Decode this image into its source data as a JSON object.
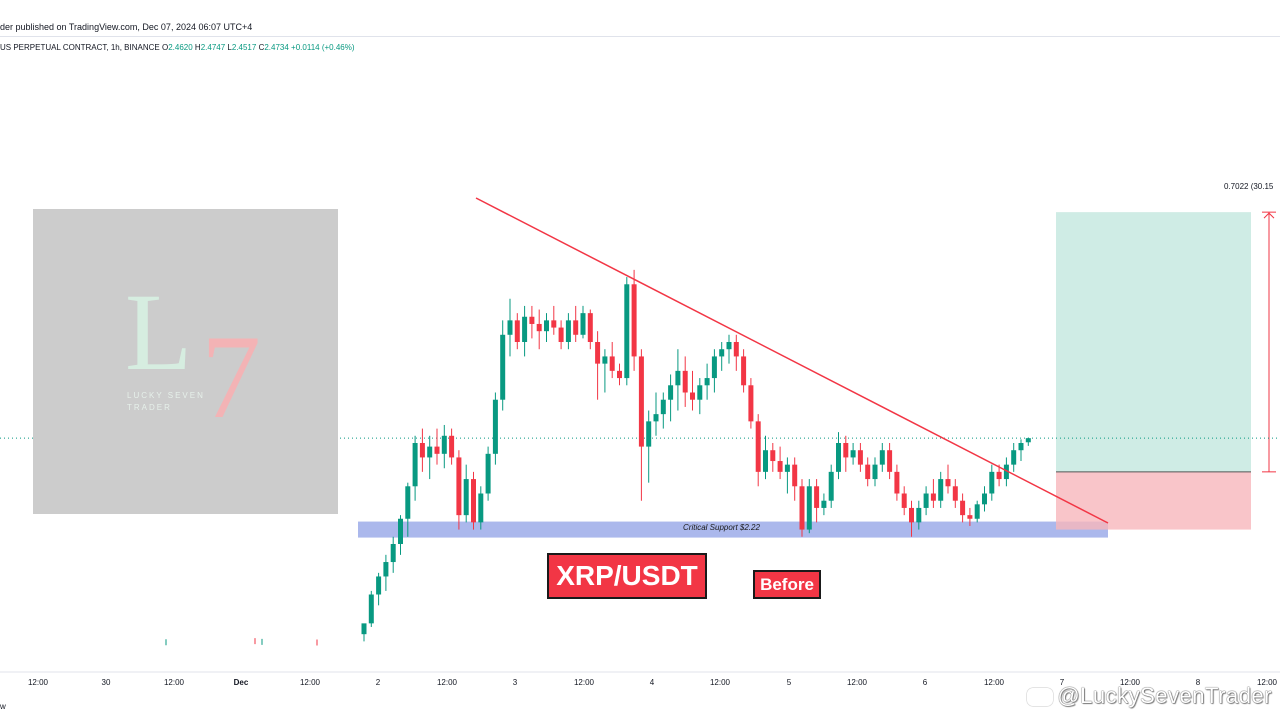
{
  "header": {
    "publish_text": "der published on TradingView.com, Dec 07, 2024 06:07 UTC+4",
    "symbol_text": "US PERPETUAL CONTRACT, 1h, BINANCE",
    "ohlc": [
      {
        "key": "O",
        "value": "2.4620"
      },
      {
        "key": "H",
        "value": "2.4747"
      },
      {
        "key": "L",
        "value": "2.4517"
      },
      {
        "key": "C",
        "value": "2.4734"
      },
      {
        "key": "",
        "value": "+0.0114 (+0.46%)"
      }
    ]
  },
  "logo": {
    "letter_l": "L",
    "digit_7": "7",
    "line1": "LUCKY SEVEN",
    "line2": "TRADER"
  },
  "annotations": {
    "pair_label": "XRP/USDT",
    "before_label": "Before",
    "support_label": "Critical Support $2.22",
    "rr_label": "0.7022 (30.15"
  },
  "watermark": "@LuckySevenTrader",
  "bottom_left": "w",
  "colors": {
    "up": "#089981",
    "down": "#f23645",
    "trendline": "#f23645",
    "support_zone": "#8fa0e6",
    "target_zone": "#bfe5dc",
    "stop_zone": "#f7b7bb",
    "price_line": "#089981"
  },
  "chart_data": {
    "type": "candlestick",
    "timeframe": "1h",
    "x_ticks": [
      "12:00",
      "30",
      "12:00",
      "Dec",
      "12:00",
      "2",
      "12:00",
      "3",
      "12:00",
      "4",
      "12:00",
      "5",
      "12:00",
      "6",
      "12:00",
      "7",
      "12:00",
      "8",
      "12:00"
    ],
    "y_range": [
      1.9,
      3.3
    ],
    "last_price": 2.4734,
    "support_level": 2.22,
    "trendline": {
      "start_price": 2.95,
      "end_price": 2.22
    },
    "position": {
      "entry": 2.38,
      "target": 3.1,
      "stop": 2.22,
      "reward_text": "0.7022 (30.15"
    },
    "candles": [
      {
        "o": 1.905,
        "h": 1.91,
        "l": 1.9,
        "c": 1.906
      },
      {
        "o": 1.906,
        "h": 1.92,
        "l": 1.9,
        "c": 1.905
      },
      {
        "o": 1.905,
        "h": 1.93,
        "l": 1.9,
        "c": 1.907
      },
      {
        "o": 1.907,
        "h": 1.91,
        "l": 1.9,
        "c": 1.904
      },
      {
        "o": 1.93,
        "h": 1.95,
        "l": 1.91,
        "c": 1.96
      },
      {
        "o": 1.96,
        "h": 2.05,
        "l": 1.95,
        "c": 2.04
      },
      {
        "o": 2.04,
        "h": 2.1,
        "l": 2.01,
        "c": 2.09
      },
      {
        "o": 2.09,
        "h": 2.15,
        "l": 2.05,
        "c": 2.13
      },
      {
        "o": 2.13,
        "h": 2.2,
        "l": 2.1,
        "c": 2.18
      },
      {
        "o": 2.18,
        "h": 2.26,
        "l": 2.15,
        "c": 2.25
      },
      {
        "o": 2.25,
        "h": 2.35,
        "l": 2.2,
        "c": 2.34
      },
      {
        "o": 2.34,
        "h": 2.48,
        "l": 2.3,
        "c": 2.46
      },
      {
        "o": 2.46,
        "h": 2.5,
        "l": 2.38,
        "c": 2.42
      },
      {
        "o": 2.42,
        "h": 2.48,
        "l": 2.36,
        "c": 2.45
      },
      {
        "o": 2.45,
        "h": 2.5,
        "l": 2.4,
        "c": 2.43
      },
      {
        "o": 2.43,
        "h": 2.51,
        "l": 2.39,
        "c": 2.48
      },
      {
        "o": 2.48,
        "h": 2.5,
        "l": 2.4,
        "c": 2.42
      },
      {
        "o": 2.42,
        "h": 2.44,
        "l": 2.22,
        "c": 2.26
      },
      {
        "o": 2.26,
        "h": 2.4,
        "l": 2.24,
        "c": 2.36
      },
      {
        "o": 2.36,
        "h": 2.38,
        "l": 2.22,
        "c": 2.24
      },
      {
        "o": 2.24,
        "h": 2.34,
        "l": 2.22,
        "c": 2.32
      },
      {
        "o": 2.32,
        "h": 2.45,
        "l": 2.3,
        "c": 2.43
      },
      {
        "o": 2.43,
        "h": 2.6,
        "l": 2.4,
        "c": 2.58
      },
      {
        "o": 2.58,
        "h": 2.8,
        "l": 2.55,
        "c": 2.76
      },
      {
        "o": 2.76,
        "h": 2.86,
        "l": 2.7,
        "c": 2.8
      },
      {
        "o": 2.8,
        "h": 2.82,
        "l": 2.72,
        "c": 2.74
      },
      {
        "o": 2.74,
        "h": 2.84,
        "l": 2.7,
        "c": 2.81
      },
      {
        "o": 2.81,
        "h": 2.84,
        "l": 2.75,
        "c": 2.79
      },
      {
        "o": 2.79,
        "h": 2.83,
        "l": 2.72,
        "c": 2.77
      },
      {
        "o": 2.77,
        "h": 2.82,
        "l": 2.74,
        "c": 2.8
      },
      {
        "o": 2.8,
        "h": 2.84,
        "l": 2.76,
        "c": 2.78
      },
      {
        "o": 2.78,
        "h": 2.8,
        "l": 2.72,
        "c": 2.74
      },
      {
        "o": 2.74,
        "h": 2.82,
        "l": 2.72,
        "c": 2.8
      },
      {
        "o": 2.8,
        "h": 2.84,
        "l": 2.74,
        "c": 2.76
      },
      {
        "o": 2.76,
        "h": 2.84,
        "l": 2.75,
        "c": 2.82
      },
      {
        "o": 2.82,
        "h": 2.83,
        "l": 2.72,
        "c": 2.74
      },
      {
        "o": 2.74,
        "h": 2.77,
        "l": 2.58,
        "c": 2.68
      },
      {
        "o": 2.68,
        "h": 2.72,
        "l": 2.6,
        "c": 2.7
      },
      {
        "o": 2.7,
        "h": 2.74,
        "l": 2.64,
        "c": 2.66
      },
      {
        "o": 2.66,
        "h": 2.68,
        "l": 2.62,
        "c": 2.64
      },
      {
        "o": 2.64,
        "h": 2.92,
        "l": 2.62,
        "c": 2.9
      },
      {
        "o": 2.9,
        "h": 2.94,
        "l": 2.66,
        "c": 2.7
      },
      {
        "o": 2.7,
        "h": 2.72,
        "l": 2.3,
        "c": 2.45
      },
      {
        "o": 2.45,
        "h": 2.55,
        "l": 2.35,
        "c": 2.52
      },
      {
        "o": 2.52,
        "h": 2.6,
        "l": 2.48,
        "c": 2.54
      },
      {
        "o": 2.54,
        "h": 2.6,
        "l": 2.5,
        "c": 2.58
      },
      {
        "o": 2.58,
        "h": 2.65,
        "l": 2.52,
        "c": 2.62
      },
      {
        "o": 2.62,
        "h": 2.72,
        "l": 2.55,
        "c": 2.66
      },
      {
        "o": 2.66,
        "h": 2.7,
        "l": 2.56,
        "c": 2.6
      },
      {
        "o": 2.6,
        "h": 2.66,
        "l": 2.55,
        "c": 2.58
      },
      {
        "o": 2.58,
        "h": 2.64,
        "l": 2.54,
        "c": 2.62
      },
      {
        "o": 2.62,
        "h": 2.68,
        "l": 2.58,
        "c": 2.64
      },
      {
        "o": 2.64,
        "h": 2.72,
        "l": 2.6,
        "c": 2.7
      },
      {
        "o": 2.7,
        "h": 2.74,
        "l": 2.66,
        "c": 2.72
      },
      {
        "o": 2.72,
        "h": 2.76,
        "l": 2.68,
        "c": 2.74
      },
      {
        "o": 2.74,
        "h": 2.76,
        "l": 2.66,
        "c": 2.7
      },
      {
        "o": 2.7,
        "h": 2.72,
        "l": 2.6,
        "c": 2.62
      },
      {
        "o": 2.62,
        "h": 2.64,
        "l": 2.5,
        "c": 2.52
      },
      {
        "o": 2.52,
        "h": 2.54,
        "l": 2.34,
        "c": 2.38
      },
      {
        "o": 2.38,
        "h": 2.48,
        "l": 2.36,
        "c": 2.44
      },
      {
        "o": 2.44,
        "h": 2.46,
        "l": 2.38,
        "c": 2.41
      },
      {
        "o": 2.41,
        "h": 2.45,
        "l": 2.36,
        "c": 2.38
      },
      {
        "o": 2.38,
        "h": 2.42,
        "l": 2.32,
        "c": 2.4
      },
      {
        "o": 2.4,
        "h": 2.42,
        "l": 2.3,
        "c": 2.34
      },
      {
        "o": 2.34,
        "h": 2.36,
        "l": 2.2,
        "c": 2.22
      },
      {
        "o": 2.22,
        "h": 2.36,
        "l": 2.21,
        "c": 2.34
      },
      {
        "o": 2.34,
        "h": 2.36,
        "l": 2.24,
        "c": 2.28
      },
      {
        "o": 2.28,
        "h": 2.32,
        "l": 2.26,
        "c": 2.3
      },
      {
        "o": 2.3,
        "h": 2.4,
        "l": 2.28,
        "c": 2.38
      },
      {
        "o": 2.38,
        "h": 2.49,
        "l": 2.36,
        "c": 2.46
      },
      {
        "o": 2.46,
        "h": 2.48,
        "l": 2.38,
        "c": 2.42
      },
      {
        "o": 2.42,
        "h": 2.46,
        "l": 2.4,
        "c": 2.44
      },
      {
        "o": 2.44,
        "h": 2.46,
        "l": 2.38,
        "c": 2.4
      },
      {
        "o": 2.4,
        "h": 2.42,
        "l": 2.34,
        "c": 2.36
      },
      {
        "o": 2.36,
        "h": 2.42,
        "l": 2.34,
        "c": 2.4
      },
      {
        "o": 2.4,
        "h": 2.46,
        "l": 2.38,
        "c": 2.44
      },
      {
        "o": 2.44,
        "h": 2.46,
        "l": 2.36,
        "c": 2.38
      },
      {
        "o": 2.38,
        "h": 2.4,
        "l": 2.3,
        "c": 2.32
      },
      {
        "o": 2.32,
        "h": 2.34,
        "l": 2.26,
        "c": 2.28
      },
      {
        "o": 2.28,
        "h": 2.3,
        "l": 2.2,
        "c": 2.24
      },
      {
        "o": 2.24,
        "h": 2.3,
        "l": 2.22,
        "c": 2.28
      },
      {
        "o": 2.28,
        "h": 2.34,
        "l": 2.26,
        "c": 2.32
      },
      {
        "o": 2.32,
        "h": 2.36,
        "l": 2.28,
        "c": 2.3
      },
      {
        "o": 2.3,
        "h": 2.38,
        "l": 2.28,
        "c": 2.36
      },
      {
        "o": 2.36,
        "h": 2.4,
        "l": 2.32,
        "c": 2.34
      },
      {
        "o": 2.34,
        "h": 2.36,
        "l": 2.28,
        "c": 2.3
      },
      {
        "o": 2.3,
        "h": 2.32,
        "l": 2.24,
        "c": 2.26
      },
      {
        "o": 2.26,
        "h": 2.28,
        "l": 2.23,
        "c": 2.25
      },
      {
        "o": 2.25,
        "h": 2.3,
        "l": 2.24,
        "c": 2.29
      },
      {
        "o": 2.29,
        "h": 2.34,
        "l": 2.27,
        "c": 2.32
      },
      {
        "o": 2.32,
        "h": 2.4,
        "l": 2.3,
        "c": 2.38
      },
      {
        "o": 2.38,
        "h": 2.4,
        "l": 2.34,
        "c": 2.36
      },
      {
        "o": 2.36,
        "h": 2.42,
        "l": 2.34,
        "c": 2.4
      },
      {
        "o": 2.4,
        "h": 2.46,
        "l": 2.38,
        "c": 2.44
      },
      {
        "o": 2.44,
        "h": 2.47,
        "l": 2.41,
        "c": 2.46
      },
      {
        "o": 2.462,
        "h": 2.475,
        "l": 2.452,
        "c": 2.4734
      }
    ]
  }
}
